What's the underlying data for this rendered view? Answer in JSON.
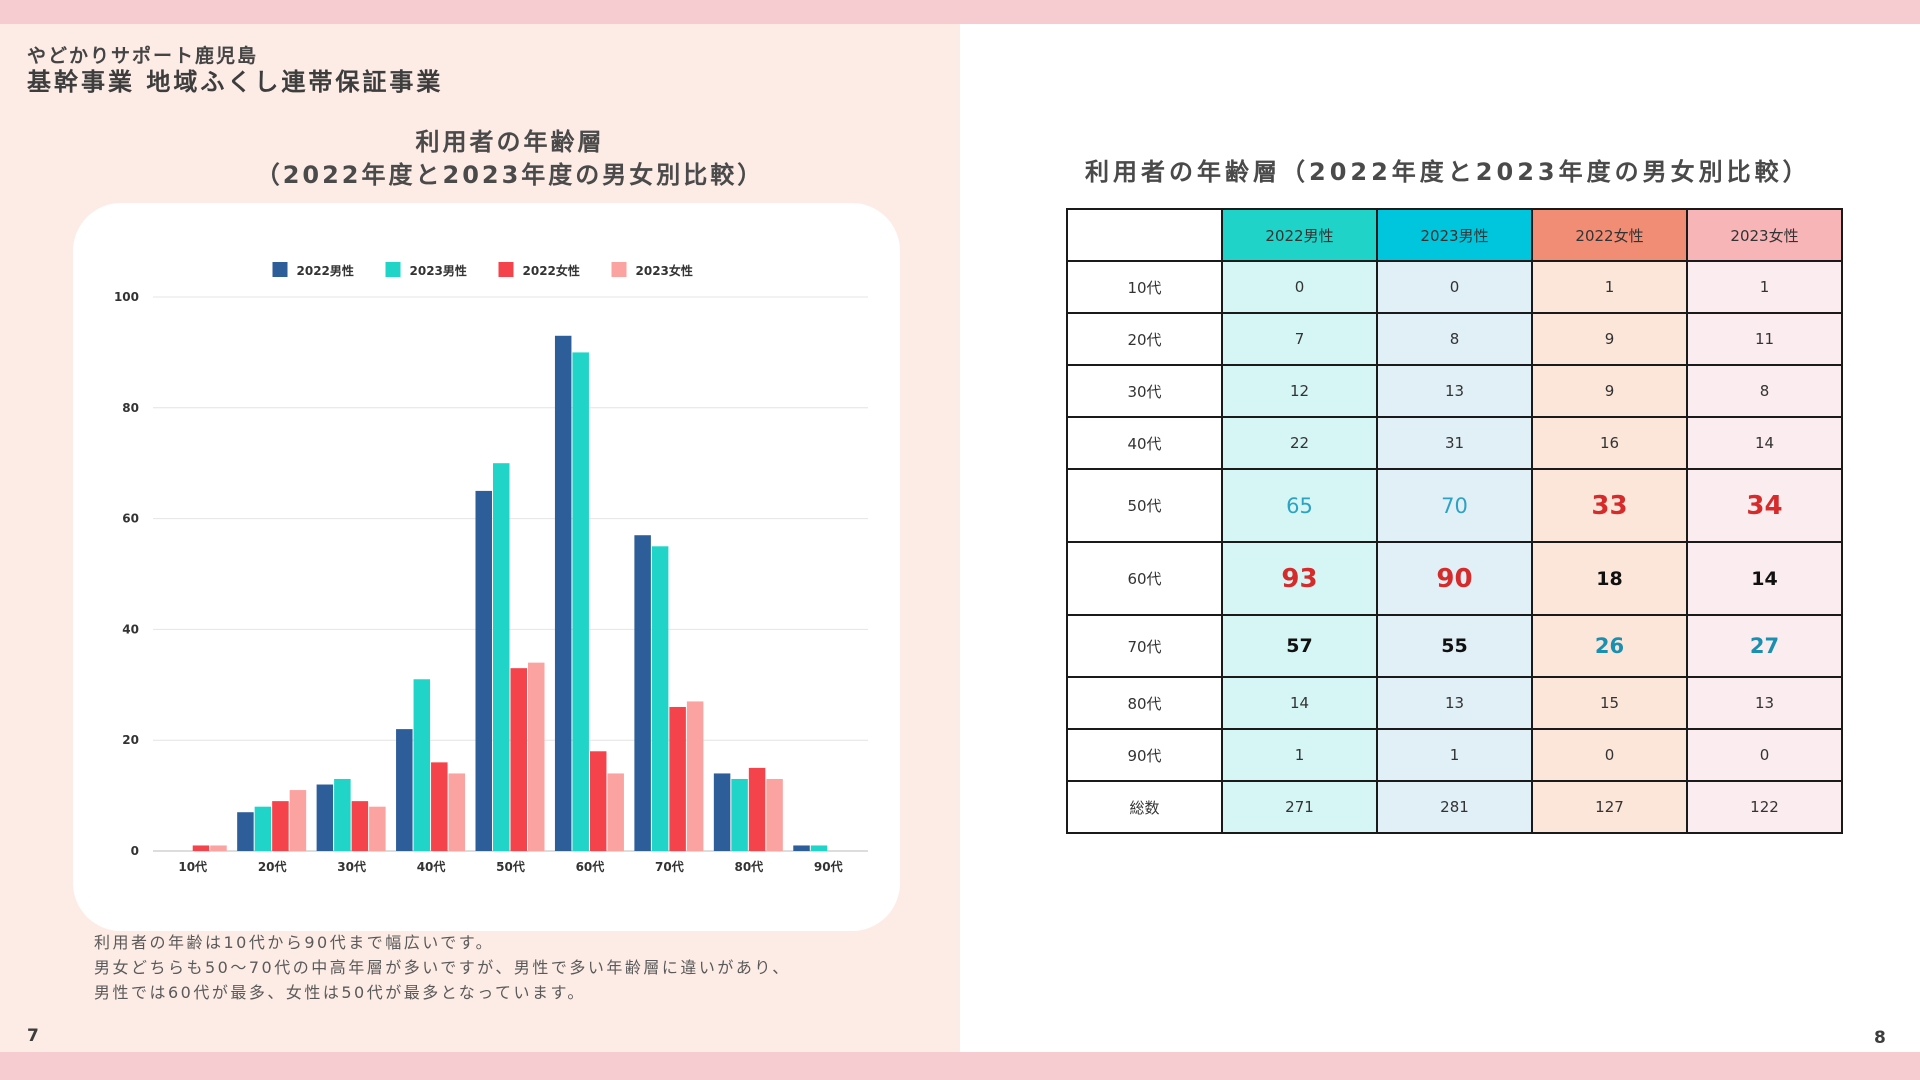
{
  "header": {
    "brand_sub": "やどかりサポート鹿児島",
    "brand_main": "基幹事業 地域ふくし連帯保証事業"
  },
  "chart_section": {
    "title_line1": "利用者の年齢層",
    "title_line2": "（2022年度と2023年度の男女別比較）"
  },
  "chart_data": {
    "type": "bar",
    "categories": [
      "10代",
      "20代",
      "30代",
      "40代",
      "50代",
      "60代",
      "70代",
      "80代",
      "90代"
    ],
    "series": [
      {
        "name": "2022男性",
        "color": "#2e5e99",
        "values": [
          0,
          7,
          12,
          22,
          65,
          93,
          57,
          14,
          1
        ]
      },
      {
        "name": "2023男性",
        "color": "#21d4c8",
        "values": [
          0,
          8,
          13,
          31,
          70,
          90,
          55,
          13,
          1
        ]
      },
      {
        "name": "2022女性",
        "color": "#f4434a",
        "values": [
          1,
          9,
          9,
          16,
          33,
          18,
          26,
          15,
          0
        ]
      },
      {
        "name": "2023女性",
        "color": "#fba3a1",
        "values": [
          1,
          11,
          8,
          14,
          34,
          14,
          27,
          13,
          0
        ]
      }
    ],
    "ylim": [
      0,
      100
    ],
    "yticks": [
      "0",
      "20",
      "40",
      "60",
      "80",
      "100"
    ],
    "grid": true,
    "legend": "top-center"
  },
  "description": {
    "line1": "利用者の年齢は10代から90代まで幅広いです。",
    "line2": "男女どちらも50〜70代の中高年層が多いですが、男性で多い年齢層に違いがあり、",
    "line3": "男性では60代が最多、女性は50代が最多となっています。"
  },
  "page_numbers": {
    "left": "7",
    "right": "8"
  },
  "table_section": {
    "title": "利用者の年齢層（2022年度と2023年度の男女別比較）",
    "headers": [
      "",
      "2022男性",
      "2023男性",
      "2022女性",
      "2023女性"
    ],
    "rows": [
      {
        "label": "10代",
        "values": [
          "0",
          "0",
          "1",
          "1"
        ]
      },
      {
        "label": "20代",
        "values": [
          "7",
          "8",
          "9",
          "11"
        ]
      },
      {
        "label": "30代",
        "values": [
          "12",
          "13",
          "9",
          "8"
        ]
      },
      {
        "label": "40代",
        "values": [
          "22",
          "31",
          "16",
          "14"
        ]
      },
      {
        "label": "50代",
        "values": [
          "65",
          "70",
          "33",
          "34"
        ]
      },
      {
        "label": "60代",
        "values": [
          "93",
          "90",
          "18",
          "14"
        ]
      },
      {
        "label": "70代",
        "values": [
          "57",
          "55",
          "26",
          "27"
        ]
      },
      {
        "label": "80代",
        "values": [
          "14",
          "13",
          "15",
          "13"
        ]
      },
      {
        "label": "90代",
        "values": [
          "1",
          "1",
          "0",
          "0"
        ]
      },
      {
        "label": "総数",
        "values": [
          "271",
          "281",
          "127",
          "122"
        ]
      }
    ]
  }
}
